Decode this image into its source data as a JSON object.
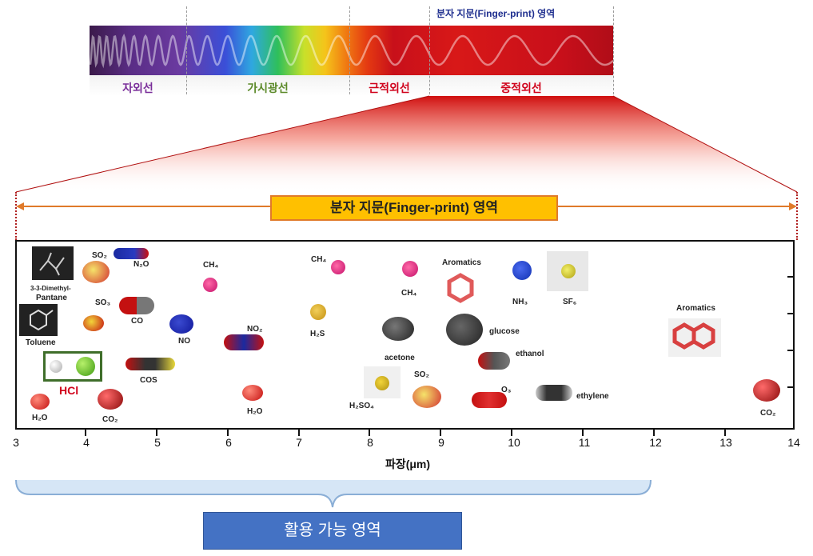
{
  "spectrum": {
    "top_title": "분자 지문(Finger-print) 영역",
    "bands": [
      "자외선",
      "가시광선",
      "근적외선",
      "중적외선"
    ],
    "band_colors": [
      "#7a2e9a",
      "#5c8a2a",
      "#d0021b",
      "#d0021b"
    ]
  },
  "fingerprint_label": "분자 지문(Finger-print) 영역",
  "axis": {
    "ticks": [
      "3",
      "4",
      "5",
      "6",
      "7",
      "8",
      "9",
      "10",
      "11",
      "12",
      "13",
      "14"
    ],
    "xlabel": "파장(μm)"
  },
  "molecules": {
    "dimethyl_1": "3-3-Dimethyl-",
    "dimethyl_2": "Pantane",
    "toluene": "Toluene",
    "hcl": "HCl",
    "h2o_a": "H₂O",
    "co2_a": "CO₂",
    "so2_a": "SO₂",
    "n2o": "N₂O",
    "so3": "SO₃",
    "co": "CO",
    "no": "NO",
    "cos": "COS",
    "ch4_a": "CH₄",
    "no2": "NO₂",
    "h2o_b": "H₂O",
    "ch4_b": "CH₄",
    "h2s": "H₂S",
    "ch4_c": "CH₄",
    "acetone": "acetone",
    "h2so4": "H₂SO₄",
    "so2_b": "SO₂",
    "aromatics_a": "Aromatics",
    "glucose": "glucose",
    "ethanol": "ethanol",
    "o3": "O₃",
    "ethylene": "ethylene",
    "nh3": "NH₃",
    "sf6": "SF₆",
    "aromatics_b": "Aromatics",
    "co2_b": "CO₂"
  },
  "application_label": "활용 가능 영역"
}
